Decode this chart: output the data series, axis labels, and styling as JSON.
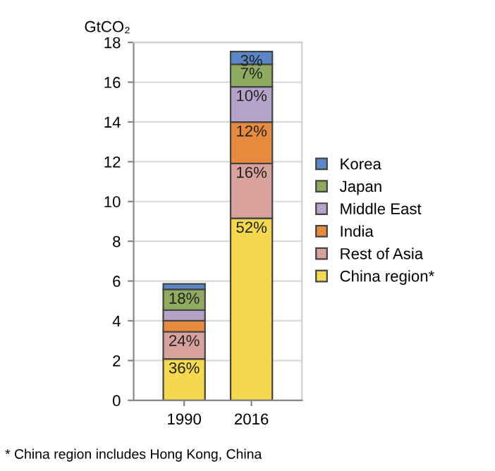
{
  "chart_data": {
    "type": "bar",
    "stacked": true,
    "ylabel": "GtCO₂",
    "categories": [
      "1990",
      "2016"
    ],
    "series": [
      {
        "name": "China region*",
        "color": "#f4d84e",
        "values": [
          2.08,
          9.15
        ]
      },
      {
        "name": "Rest of Asia",
        "color": "#d9a19c",
        "values": [
          1.37,
          2.76
        ]
      },
      {
        "name": "India",
        "color": "#e98b3e",
        "values": [
          0.55,
          2.08
        ]
      },
      {
        "name": "Middle East",
        "color": "#b5a3ca",
        "values": [
          0.54,
          1.78
        ]
      },
      {
        "name": "Japan",
        "color": "#8fab5f",
        "values": [
          1.04,
          1.13
        ]
      },
      {
        "name": "Korea",
        "color": "#5b87c6",
        "values": [
          0.28,
          0.64
        ]
      }
    ],
    "ylim": [
      0,
      18
    ],
    "yticks": [
      0,
      2,
      4,
      6,
      8,
      10,
      12,
      14,
      16,
      18
    ],
    "grid": "y",
    "legend": "right",
    "annotations": [
      {
        "text": "36%",
        "x": "1990",
        "y": 2.08
      },
      {
        "text": "24%",
        "x": "1990",
        "y": 3.45
      },
      {
        "text": "18%",
        "x": "1990",
        "y": 5.58
      },
      {
        "text": "52%",
        "x": "2016",
        "y": 9.15
      },
      {
        "text": "16%",
        "x": "2016",
        "y": 11.91
      },
      {
        "text": "12%",
        "x": "2016",
        "y": 13.99
      },
      {
        "text": "10%",
        "x": "2016",
        "y": 15.77
      },
      {
        "text": "7%",
        "x": "2016",
        "y": 16.9
      },
      {
        "text": "3%",
        "x": "2016",
        "y": 17.54
      },
      "* China region includes Hong Kong, China"
    ]
  }
}
